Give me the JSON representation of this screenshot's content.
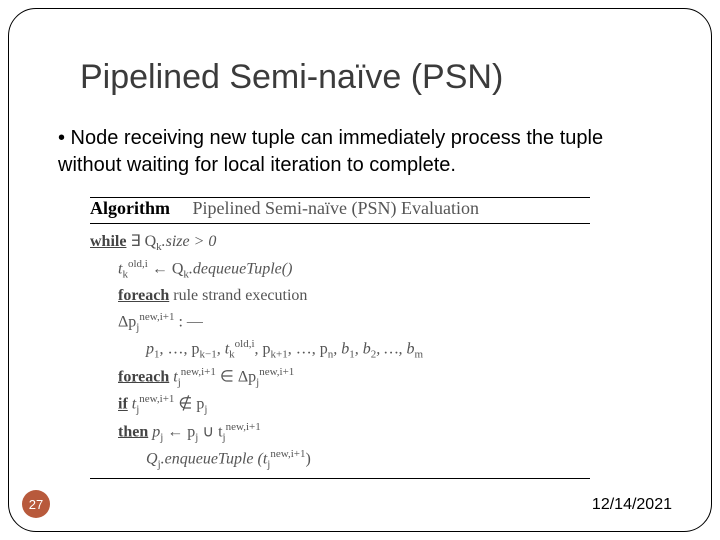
{
  "title": "Pipelined Semi-naïve (PSN)",
  "bullet": "• Node receiving new tuple can immediately process the tuple without waiting for local iteration to complete.",
  "algorithm": {
    "header_kw": "Algorithm",
    "header_text": "Pipelined Semi-naïve (PSN) Evaluation",
    "lines": {
      "l1a": "while",
      "l1b": " ∃ Q",
      "l1c": "k",
      "l1d": ".size > 0",
      "l2a": "t",
      "l2b": "k",
      "l2c": "old,i",
      "l2d": " ← Q",
      "l2e": "k",
      "l2f": ".dequeueTuple()",
      "l3a": "foreach",
      "l3b": " rule strand execution",
      "l4a": "Δp",
      "l4b": "j",
      "l4c": "new,i+1",
      "l4d": " : —",
      "l5a": "p",
      "l5b": "1",
      "l5c": ", …, p",
      "l5d": "k−1",
      "l5e": ", t",
      "l5f": "k",
      "l5g": "old,i",
      "l5h": ", p",
      "l5i": "k+1",
      "l5j": ", …, p",
      "l5k": "n",
      "l5l": ", b",
      "l5m": "1",
      "l5n": ", b",
      "l5o": "2",
      "l5p": ", …, b",
      "l5q": "m",
      "l6a": "foreach",
      "l6b": " t",
      "l6c": "j",
      "l6d": "new,i+1",
      "l6e": " ∈ Δp",
      "l6f": "j",
      "l6g": "new,i+1",
      "l7a": "if",
      "l7b": " t",
      "l7c": "j",
      "l7d": "new,i+1",
      "l7e": " ∉ p",
      "l7f": "j",
      "l8a": "then",
      "l8b": " p",
      "l8c": "j",
      "l8d": " ← p",
      "l8e": "j",
      "l8f": " ∪ t",
      "l8g": "j",
      "l8h": "new,i+1",
      "l9a": "Q",
      "l9b": "j",
      "l9c": ".enqueueTuple (t",
      "l9d": "j",
      "l9e": "new,i+1",
      "l9f": ")"
    }
  },
  "page_number": "27",
  "date": "12/14/2021",
  "colors": {
    "title_color": "#3b3b3b",
    "badge_bg": "#b85a3c",
    "algo_text": "#555555",
    "frame_border": "#000000"
  }
}
